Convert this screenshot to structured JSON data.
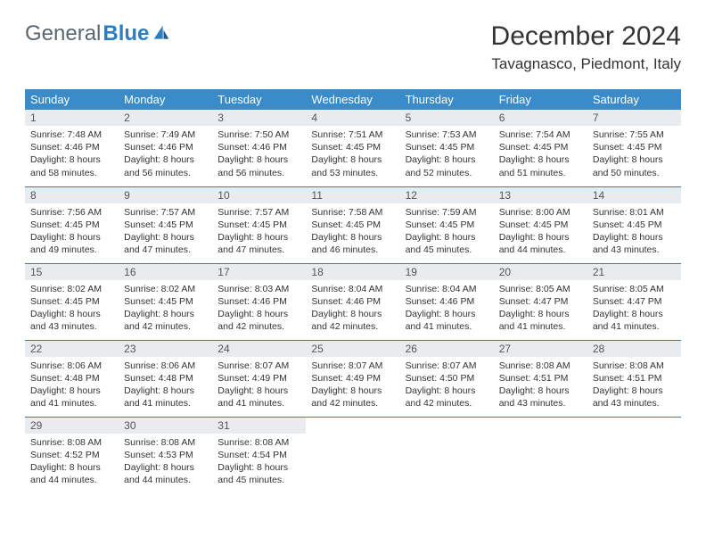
{
  "logo": {
    "text1": "General",
    "text2": "Blue"
  },
  "title": "December 2024",
  "location": "Tavagnasco, Piedmont, Italy",
  "colors": {
    "header_bg": "#3a8bc9",
    "header_fg": "#ffffff",
    "daynum_bg": "#e9ecef",
    "rule": "#3a7ca8",
    "logo_gray": "#5b6770",
    "logo_blue": "#2d7dc1"
  },
  "day_labels": [
    "Sunday",
    "Monday",
    "Tuesday",
    "Wednesday",
    "Thursday",
    "Friday",
    "Saturday"
  ],
  "weeks": [
    [
      {
        "n": "1",
        "sr": "7:48 AM",
        "ss": "4:46 PM",
        "dl": "8 hours and 58 minutes."
      },
      {
        "n": "2",
        "sr": "7:49 AM",
        "ss": "4:46 PM",
        "dl": "8 hours and 56 minutes."
      },
      {
        "n": "3",
        "sr": "7:50 AM",
        "ss": "4:46 PM",
        "dl": "8 hours and 56 minutes."
      },
      {
        "n": "4",
        "sr": "7:51 AM",
        "ss": "4:45 PM",
        "dl": "8 hours and 53 minutes."
      },
      {
        "n": "5",
        "sr": "7:53 AM",
        "ss": "4:45 PM",
        "dl": "8 hours and 52 minutes."
      },
      {
        "n": "6",
        "sr": "7:54 AM",
        "ss": "4:45 PM",
        "dl": "8 hours and 51 minutes."
      },
      {
        "n": "7",
        "sr": "7:55 AM",
        "ss": "4:45 PM",
        "dl": "8 hours and 50 minutes."
      }
    ],
    [
      {
        "n": "8",
        "sr": "7:56 AM",
        "ss": "4:45 PM",
        "dl": "8 hours and 49 minutes."
      },
      {
        "n": "9",
        "sr": "7:57 AM",
        "ss": "4:45 PM",
        "dl": "8 hours and 47 minutes."
      },
      {
        "n": "10",
        "sr": "7:57 AM",
        "ss": "4:45 PM",
        "dl": "8 hours and 47 minutes."
      },
      {
        "n": "11",
        "sr": "7:58 AM",
        "ss": "4:45 PM",
        "dl": "8 hours and 46 minutes."
      },
      {
        "n": "12",
        "sr": "7:59 AM",
        "ss": "4:45 PM",
        "dl": "8 hours and 45 minutes."
      },
      {
        "n": "13",
        "sr": "8:00 AM",
        "ss": "4:45 PM",
        "dl": "8 hours and 44 minutes."
      },
      {
        "n": "14",
        "sr": "8:01 AM",
        "ss": "4:45 PM",
        "dl": "8 hours and 43 minutes."
      }
    ],
    [
      {
        "n": "15",
        "sr": "8:02 AM",
        "ss": "4:45 PM",
        "dl": "8 hours and 43 minutes."
      },
      {
        "n": "16",
        "sr": "8:02 AM",
        "ss": "4:45 PM",
        "dl": "8 hours and 42 minutes."
      },
      {
        "n": "17",
        "sr": "8:03 AM",
        "ss": "4:46 PM",
        "dl": "8 hours and 42 minutes."
      },
      {
        "n": "18",
        "sr": "8:04 AM",
        "ss": "4:46 PM",
        "dl": "8 hours and 42 minutes."
      },
      {
        "n": "19",
        "sr": "8:04 AM",
        "ss": "4:46 PM",
        "dl": "8 hours and 41 minutes."
      },
      {
        "n": "20",
        "sr": "8:05 AM",
        "ss": "4:47 PM",
        "dl": "8 hours and 41 minutes."
      },
      {
        "n": "21",
        "sr": "8:05 AM",
        "ss": "4:47 PM",
        "dl": "8 hours and 41 minutes."
      }
    ],
    [
      {
        "n": "22",
        "sr": "8:06 AM",
        "ss": "4:48 PM",
        "dl": "8 hours and 41 minutes."
      },
      {
        "n": "23",
        "sr": "8:06 AM",
        "ss": "4:48 PM",
        "dl": "8 hours and 41 minutes."
      },
      {
        "n": "24",
        "sr": "8:07 AM",
        "ss": "4:49 PM",
        "dl": "8 hours and 41 minutes."
      },
      {
        "n": "25",
        "sr": "8:07 AM",
        "ss": "4:49 PM",
        "dl": "8 hours and 42 minutes."
      },
      {
        "n": "26",
        "sr": "8:07 AM",
        "ss": "4:50 PM",
        "dl": "8 hours and 42 minutes."
      },
      {
        "n": "27",
        "sr": "8:08 AM",
        "ss": "4:51 PM",
        "dl": "8 hours and 43 minutes."
      },
      {
        "n": "28",
        "sr": "8:08 AM",
        "ss": "4:51 PM",
        "dl": "8 hours and 43 minutes."
      }
    ],
    [
      {
        "n": "29",
        "sr": "8:08 AM",
        "ss": "4:52 PM",
        "dl": "8 hours and 44 minutes."
      },
      {
        "n": "30",
        "sr": "8:08 AM",
        "ss": "4:53 PM",
        "dl": "8 hours and 44 minutes."
      },
      {
        "n": "31",
        "sr": "8:08 AM",
        "ss": "4:54 PM",
        "dl": "8 hours and 45 minutes."
      },
      null,
      null,
      null,
      null
    ]
  ],
  "labels": {
    "sunrise": "Sunrise:",
    "sunset": "Sunset:",
    "daylight": "Daylight:"
  }
}
